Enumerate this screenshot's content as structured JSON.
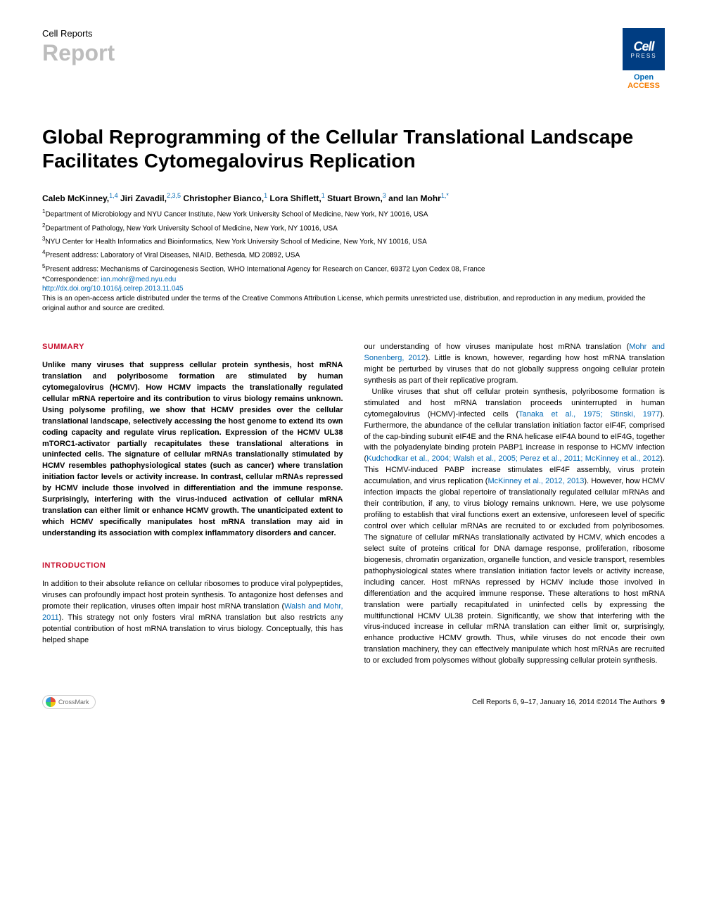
{
  "header": {
    "journal": "Cell Reports",
    "sectionType": "Report",
    "badge": {
      "top": "Cell",
      "bottom": "PRESS"
    },
    "openAccess": {
      "line1": "Open",
      "line2": "ACCESS"
    }
  },
  "title": "Global Reprogramming of the Cellular Translational Landscape Facilitates Cytomegalovirus Replication",
  "authors": [
    {
      "name": "Caleb McKinney,",
      "sup": "1,4"
    },
    {
      "name": " Jiri Zavadil,",
      "sup": "2,3,5"
    },
    {
      "name": " Christopher Bianco,",
      "sup": "1"
    },
    {
      "name": " Lora Shiflett,",
      "sup": "1"
    },
    {
      "name": " Stuart Brown,",
      "sup": "3"
    },
    {
      "name": " and Ian Mohr",
      "sup": "1,*"
    }
  ],
  "affiliations": [
    {
      "sup": "1",
      "text": "Department of Microbiology and NYU Cancer Institute, New York University School of Medicine, New York, NY 10016, USA"
    },
    {
      "sup": "2",
      "text": "Department of Pathology, New York University School of Medicine, New York, NY 10016, USA"
    },
    {
      "sup": "3",
      "text": "NYU Center for Health Informatics and Bioinformatics, New York University School of Medicine, New York, NY 10016, USA"
    },
    {
      "sup": "4",
      "text": "Present address: Laboratory of Viral Diseases, NIAID, Bethesda, MD 20892, USA"
    },
    {
      "sup": "5",
      "text": "Present address: Mechanisms of Carcinogenesis Section, WHO International Agency for Research on Cancer, 69372 Lyon Cedex 08, France"
    }
  ],
  "correspondence": {
    "label": "*Correspondence: ",
    "email": "ian.mohr@med.nyu.edu"
  },
  "doi": "http://dx.doi.org/10.1016/j.celrep.2013.11.045",
  "license": "This is an open-access article distributed under the terms of the Creative Commons Attribution License, which permits unrestricted use, distribution, and reproduction in any medium, provided the original author and source are credited.",
  "sections": {
    "summaryHeading": "SUMMARY",
    "summaryText": "Unlike many viruses that suppress cellular protein synthesis, host mRNA translation and polyribosome formation are stimulated by human cytomegalovirus (HCMV). How HCMV impacts the translationally regulated cellular mRNA repertoire and its contribution to virus biology remains unknown. Using polysome profiling, we show that HCMV presides over the cellular translational landscape, selectively accessing the host genome to extend its own coding capacity and regulate virus replication. Expression of the HCMV UL38 mTORC1-activator partially recapitulates these translational alterations in uninfected cells. The signature of cellular mRNAs translationally stimulated by HCMV resembles pathophysiological states (such as cancer) where translation initiation factor levels or activity increase. In contrast, cellular mRNAs repressed by HCMV include those involved in differentiation and the immune response. Surprisingly, interfering with the virus-induced activation of cellular mRNA translation can either limit or enhance HCMV growth. The unanticipated extent to which HCMV specifically manipulates host mRNA translation may aid in understanding its association with complex inflammatory disorders and cancer.",
    "introHeading": "INTRODUCTION",
    "introPara1a": "In addition to their absolute reliance on cellular ribosomes to produce viral polypeptides, viruses can profoundly impact host protein synthesis. To antagonize host defenses and promote their replication, viruses often impair host mRNA translation (",
    "introLink1": "Walsh and Mohr, 2011",
    "introPara1b": "). This strategy not only fosters viral mRNA translation but also restricts any potential contribution of host mRNA translation to virus biology. Conceptually, this has helped shape",
    "col2Para1a": "our understanding of how viruses manipulate host mRNA translation (",
    "col2Link1": "Mohr and Sonenberg, 2012",
    "col2Para1b": "). Little is known, however, regarding how host mRNA translation might be perturbed by viruses that do not globally suppress ongoing cellular protein synthesis as part of their replicative program.",
    "col2Para2a": "Unlike viruses that shut off cellular protein synthesis, polyribosome formation is stimulated and host mRNA translation proceeds uninterrupted in human cytomegalovirus (HCMV)-infected cells (",
    "col2Link2": "Tanaka et al., 1975; Stinski, 1977",
    "col2Para2b": "). Furthermore, the abundance of the cellular translation initiation factor eIF4F, comprised of the cap-binding subunit eIF4E and the RNA helicase eIF4A bound to eIF4G, together with the polyadenylate binding protein PABP1 increase in response to HCMV infection (",
    "col2Link3": "Kudchodkar et al., 2004; Walsh et al., 2005; Perez et al., 2011; McKinney et al., 2012",
    "col2Para2c": "). This HCMV-induced PABP increase stimulates eIF4F assembly, virus protein accumulation, and virus replication (",
    "col2Link4": "McKinney et al., 2012, 2013",
    "col2Para2d": "). However, how HCMV infection impacts the global repertoire of translationally regulated cellular mRNAs and their contribution, if any, to virus biology remains unknown. Here, we use polysome profiling to establish that viral functions exert an extensive, unforeseen level of specific control over which cellular mRNAs are recruited to or excluded from polyribosomes. The signature of cellular mRNAs translationally activated by HCMV, which encodes a select suite of proteins critical for DNA damage response, proliferation, ribosome biogenesis, chromatin organization, organelle function, and vesicle transport, resembles pathophysiological states where translation initiation factor levels or activity increase, including cancer. Host mRNAs repressed by HCMV include those involved in differentiation and the acquired immune response. These alterations to host mRNA translation were partially recapitulated in uninfected cells by expressing the multifunctional HCMV UL38 protein. Significantly, we show that interfering with the virus-induced increase in cellular mRNA translation can either limit or, surprisingly, enhance productive HCMV growth. Thus, while viruses do not encode their own translation machinery, they can effectively manipulate which host mRNAs are recruited to or excluded from polysomes without globally suppressing cellular protein synthesis."
  },
  "footer": {
    "crossmark": "CrossMark",
    "pageInfo": "Cell Reports 6, 9–17, January 16, 2014 ©2014 The Authors",
    "pageNum": "9"
  },
  "colors": {
    "headingRed": "#c8102e",
    "linkBlue": "#0068b3",
    "badgeBlue": "#003d82",
    "grayText": "#bdbdbd",
    "orange": "#f57c00"
  }
}
